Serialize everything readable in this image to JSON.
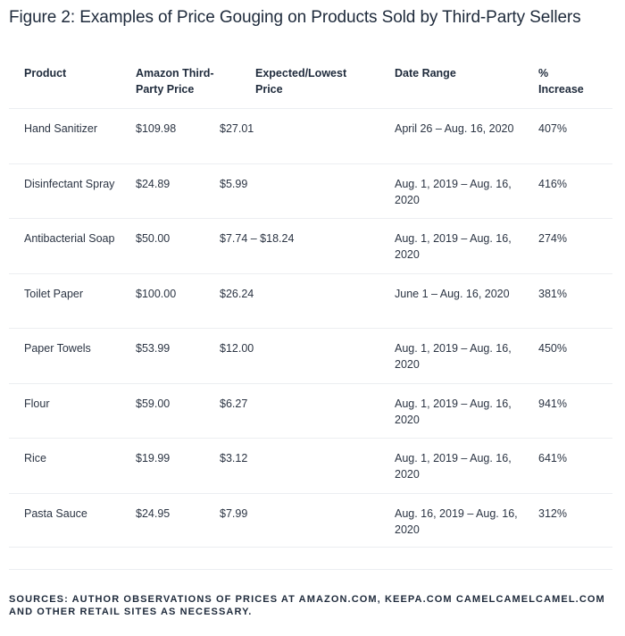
{
  "title": "Figure 2: Examples of Price Gouging on Products Sold by Third-Party Sellers",
  "headers": {
    "product": "Product",
    "amazon": "Amazon Third-Party Price",
    "expected": "Expected/Lowest Price",
    "date": "Date Range",
    "pct": "% Increase"
  },
  "rows": [
    {
      "product": "Hand Sanitizer",
      "amazon": "$109.98",
      "expected": "$27.01",
      "date": "April 26 – Aug. 16, 2020",
      "pct": "407%"
    },
    {
      "product": "Disinfectant Spray",
      "amazon": "$24.89",
      "expected": "$5.99",
      "date": "Aug. 1, 2019 – Aug. 16, 2020",
      "pct": "416%"
    },
    {
      "product": "Antibacterial Soap",
      "amazon": "$50.00",
      "expected": "$7.74 – $18.24",
      "date": "Aug. 1, 2019 – Aug. 16, 2020",
      "pct": "274%"
    },
    {
      "product": "Toilet Paper",
      "amazon": "$100.00",
      "expected": "$26.24",
      "date": "June 1 – Aug. 16, 2020",
      "pct": "381%"
    },
    {
      "product": "Paper Towels",
      "amazon": "$53.99",
      "expected": "$12.00",
      "date": "Aug. 1, 2019 – Aug. 16, 2020",
      "pct": "450%"
    },
    {
      "product": "Flour",
      "amazon": "$59.00",
      "expected": "$6.27",
      "date": "Aug. 1, 2019 – Aug. 16, 2020",
      "pct": "941%"
    },
    {
      "product": "Rice",
      "amazon": "$19.99",
      "expected": "$3.12",
      "date": "Aug. 1, 2019 – Aug. 16, 2020",
      "pct": "641%"
    },
    {
      "product": "Pasta Sauce",
      "amazon": "$24.95",
      "expected": "$7.99",
      "date": "Aug. 16, 2019 – Aug. 16, 2020",
      "pct": "312%"
    }
  ],
  "sources": "SOURCES: AUTHOR OBSERVATIONS OF PRICES AT AMAZON.COM, KEEPA.COM CAMELCAMELCAMEL.COM AND OTHER RETAIL SITES AS NECESSARY."
}
